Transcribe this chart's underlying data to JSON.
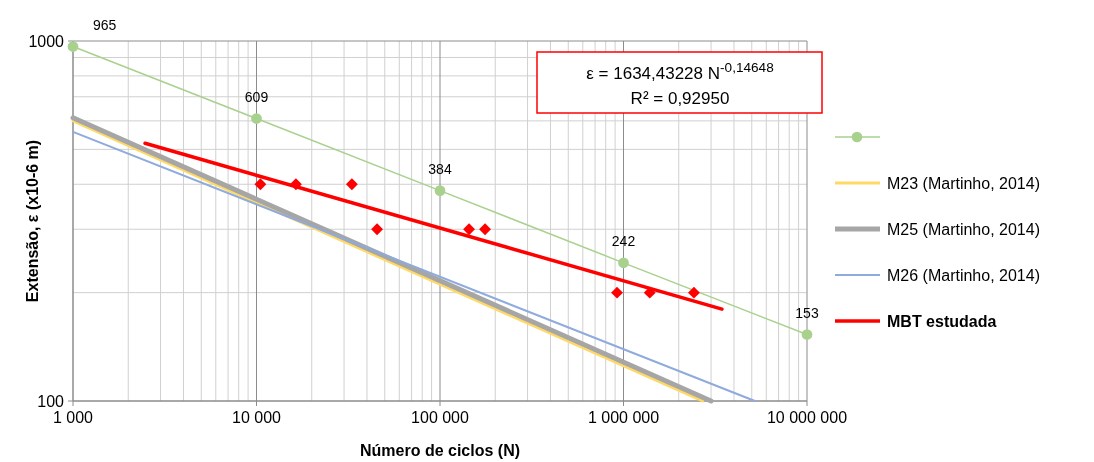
{
  "chart_data": {
    "type": "line",
    "xlabel": "Número de ciclos (N)",
    "ylabel": "Extensão, ε  (x10-6 m)",
    "log": "xy",
    "grid": true,
    "legend": "right",
    "xlim": [
      1000,
      10000000
    ],
    "xticks": [
      {
        "value": 1000,
        "label": "1 000"
      },
      {
        "value": 10000,
        "label": "10 000"
      },
      {
        "value": 100000,
        "label": "100 000"
      },
      {
        "value": 1000000,
        "label": "1 000 000"
      },
      {
        "value": 10000000,
        "label": "10 000 000"
      }
    ],
    "ylim": [
      100,
      1000
    ],
    "yticks": [
      100,
      1000
    ],
    "annotations": [
      "ε  = 1634,43228 N$^{-0,14648}$",
      "R² = 0,92950"
    ],
    "series": [
      {
        "color": "#a9d18e",
        "marker": "circle",
        "x": [
          1000,
          10000,
          100000,
          1000000,
          10000000
        ],
        "values": [
          965,
          609,
          384,
          242,
          153
        ],
        "value_labels": [
          "965",
          "609",
          "384",
          "242",
          "153"
        ]
      },
      {
        "name": "M23 (Martinho, 2014)",
        "color": "#ffd966",
        "marker": "none",
        "x": [
          1000,
          2700000
        ],
        "values": [
          600,
          100
        ]
      },
      {
        "name": "M25 (Martinho, 2014)",
        "color": "#a6a6a6",
        "marker": "none",
        "x": [
          1000,
          3000000
        ],
        "values": [
          612,
          100
        ]
      },
      {
        "name": "M26 (Martinho, 2014)",
        "color": "#8faadc",
        "marker": "none",
        "x": [
          1000,
          5200000
        ],
        "values": [
          559,
          100
        ]
      },
      {
        "name": "MBT estudada",
        "color": "#ff0000",
        "marker": "none",
        "x": [
          2470,
          3440000
        ],
        "values": [
          520,
          180
        ]
      },
      {
        "type": "scatter",
        "color": "#ff0000",
        "marker": "diamond",
        "x": [
          10500,
          16400,
          33100,
          45400,
          144000,
          176000,
          922000,
          1390000,
          2420000
        ],
        "values": [
          400,
          400,
          400,
          300,
          300,
          300,
          200,
          200,
          200
        ]
      }
    ]
  }
}
